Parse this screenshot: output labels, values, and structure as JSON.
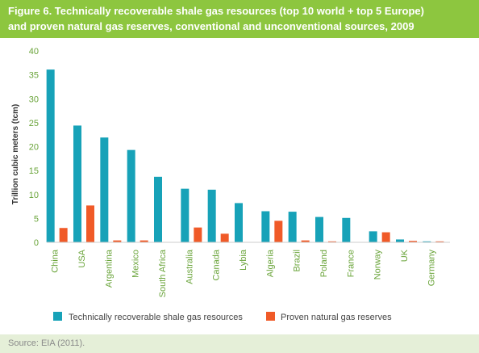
{
  "figure": {
    "title_line1": "Figure 6. Technically recoverable shale gas resources (top 10 world + top 5 Europe)",
    "title_line2": "and proven natural gas reserves, conventional and unconventional sources, 2009",
    "source": "Source: EIA (2011).",
    "colors": {
      "header": "#8dc63f",
      "footer": "#e5efd8"
    }
  },
  "chart_data": {
    "type": "bar",
    "title": "Figure 6. Technically recoverable shale gas resources (top 10 world + top 5 Europe) and proven natural gas reserves, conventional and unconventional sources, 2009",
    "ylabel": "Trillion cubic meters (tcm)",
    "xlabel": "",
    "ylim": [
      0,
      40
    ],
    "yticks": [
      0,
      5,
      10,
      15,
      20,
      25,
      30,
      35,
      40
    ],
    "grid": false,
    "legend_position": "bottom",
    "categories": [
      "China",
      "USA",
      "Argentina",
      "Mexico",
      "South Africa",
      "Australia",
      "Canada",
      "Lybia",
      "Algeria",
      "Brazil",
      "Poland",
      "France",
      "Norway",
      "UK",
      "Germany"
    ],
    "series": [
      {
        "name": "Technically recoverable shale gas resources",
        "color": "#17a2b8",
        "values": [
          36.1,
          24.4,
          21.9,
          19.3,
          13.7,
          11.2,
          11.0,
          8.2,
          6.5,
          6.4,
          5.3,
          5.1,
          2.3,
          0.6,
          0.2
        ]
      },
      {
        "name": "Proven natural gas reserves",
        "color": "#f05a28",
        "values": [
          3.0,
          7.7,
          0.4,
          0.4,
          0.0,
          3.1,
          1.8,
          0.0,
          4.5,
          0.4,
          0.2,
          0.0,
          2.1,
          0.3,
          0.2
        ]
      }
    ]
  }
}
